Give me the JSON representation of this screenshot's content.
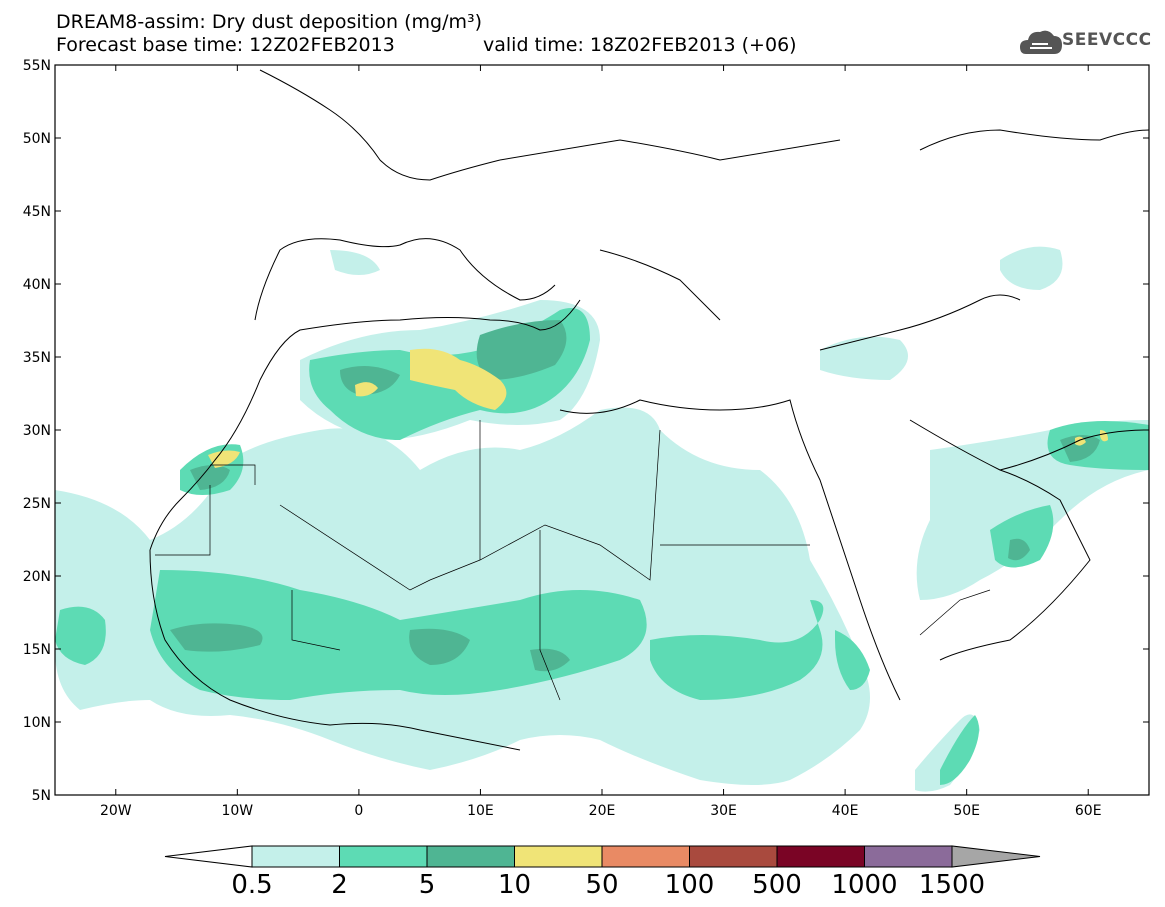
{
  "header": {
    "title_line1": "DREAM8-assim: Dry dust deposition (mg/m³)",
    "title_line2_left": "Forecast base time: 12Z02FEB2013",
    "title_line2_right": "valid time: 18Z02FEB2013 (+06)",
    "logo_text": "SEEVCCC",
    "logo_icon": "cloud-icon"
  },
  "map": {
    "lat_range": [
      5,
      55
    ],
    "lon_range": [
      -25,
      65
    ],
    "lat_labels": [
      "55N",
      "50N",
      "45N",
      "40N",
      "35N",
      "30N",
      "25N",
      "20N",
      "15N",
      "10N",
      "5N"
    ],
    "lon_labels": [
      "20W",
      "10W",
      "0",
      "10E",
      "20E",
      "30E",
      "40E",
      "50E",
      "60E"
    ]
  },
  "colorbar": {
    "labels": [
      "0.5",
      "2",
      "5",
      "10",
      "50",
      "100",
      "500",
      "1000",
      "1500"
    ],
    "colors": [
      "#c4f0ea",
      "#5ddbb4",
      "#4fb593",
      "#f0e477",
      "#e98a64",
      "#a94a3e",
      "#7a0425",
      "#8b6b9a"
    ],
    "under_color": "#ffffff",
    "over_color": "#a6a6a6"
  }
}
